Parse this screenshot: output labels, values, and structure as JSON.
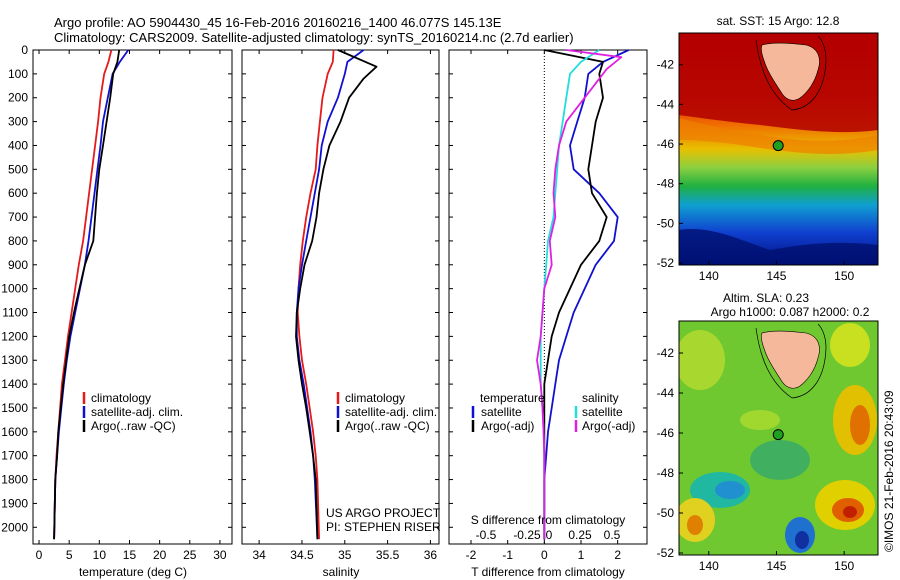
{
  "header": {
    "line1": "Argo profile: AO 5904430_45 16-Feb-2016 20160216_1400 46.077S 145.13E",
    "line2": "Climatology: CARS2009. Satellite-adjusted climatology: synTS_20160214.nc (2.7d earlier)"
  },
  "credit": {
    "project": "US ARGO PROJECT",
    "pi": "PI: STEPHEN RISER",
    "imos": "©IMOS 21-Feb-2016 20:43:09"
  },
  "colors": {
    "climatology": "#e41a1c",
    "satellite": "#1010d0",
    "argo": "#000000",
    "sat_salinity": "#22dddd",
    "argo_salinity": "#e020e0",
    "land": "#f5b89a"
  },
  "chart_data": [
    {
      "type": "line",
      "panel": "temperature",
      "xlabel": "temperature (deg C)",
      "xlim": [
        -1,
        32
      ],
      "ylim": [
        2070,
        0
      ],
      "xticks": [
        0,
        5,
        10,
        15,
        20,
        25,
        30
      ],
      "yticks": [
        0,
        100,
        200,
        300,
        400,
        500,
        600,
        700,
        800,
        900,
        1000,
        1100,
        1200,
        1300,
        1400,
        1500,
        1600,
        1700,
        1800,
        1900,
        2000
      ],
      "legend": [
        "climatology",
        "satellite-adj. clim.",
        "Argo(..raw -QC)"
      ],
      "series": [
        {
          "name": "climatology",
          "color": "#e41a1c",
          "x": [
            12.0,
            11.5,
            10.8,
            10.2,
            9.8,
            9.3,
            8.8,
            8.3,
            7.8,
            7.3,
            6.6,
            6.0,
            5.4,
            4.8,
            4.3,
            3.8,
            3.5,
            3.2,
            2.9,
            2.7,
            2.5
          ],
          "y": [
            0,
            50,
            100,
            200,
            300,
            400,
            500,
            600,
            700,
            800,
            900,
            1000,
            1100,
            1200,
            1300,
            1400,
            1500,
            1600,
            1700,
            1800,
            2050
          ]
        },
        {
          "name": "satellite-adj. clim.",
          "color": "#1010d0",
          "x": [
            14.8,
            13.4,
            12.2,
            11.4,
            10.6,
            10.2,
            9.7,
            9.2,
            8.7,
            8.2,
            7.6,
            6.8,
            6.0,
            5.2,
            4.6,
            4.1,
            3.7,
            3.3,
            3.0,
            2.7,
            2.5
          ],
          "y": [
            0,
            50,
            100,
            200,
            300,
            400,
            500,
            600,
            700,
            800,
            900,
            1000,
            1100,
            1200,
            1300,
            1400,
            1500,
            1600,
            1700,
            1800,
            2050
          ]
        },
        {
          "name": "Argo(..raw -QC)",
          "color": "#000000",
          "x": [
            13.3,
            13.0,
            12.3,
            11.8,
            11.2,
            10.6,
            10.0,
            9.6,
            9.3,
            9.0,
            7.6,
            6.7,
            5.8,
            5.0,
            4.5,
            4.0,
            3.6,
            3.2,
            3.0,
            2.7,
            2.5
          ],
          "y": [
            0,
            50,
            100,
            200,
            300,
            400,
            500,
            600,
            700,
            800,
            900,
            1000,
            1100,
            1200,
            1300,
            1400,
            1500,
            1600,
            1700,
            1800,
            2050
          ]
        }
      ]
    },
    {
      "type": "line",
      "panel": "salinity",
      "xlabel": "salinity",
      "xlim": [
        33.8,
        36.1
      ],
      "ylim": [
        2070,
        0
      ],
      "xticks": [
        34,
        34.5,
        35,
        35.5,
        36
      ],
      "legend": [
        "climatology",
        "satellite-adj. clim.",
        "Argo(..raw -QC)"
      ],
      "series": [
        {
          "name": "climatology",
          "color": "#e41a1c",
          "x": [
            34.87,
            34.86,
            34.8,
            34.74,
            34.71,
            34.68,
            34.66,
            34.6,
            34.55,
            34.51,
            34.48,
            34.46,
            34.45,
            34.47,
            34.5,
            34.55,
            34.59,
            34.63,
            34.66,
            34.68,
            34.7
          ],
          "y": [
            0,
            50,
            100,
            200,
            300,
            400,
            500,
            600,
            700,
            800,
            900,
            1000,
            1100,
            1200,
            1300,
            1400,
            1500,
            1600,
            1700,
            1800,
            2050
          ]
        },
        {
          "name": "satellite-adj. clim.",
          "color": "#1010d0",
          "x": [
            35.22,
            35.03,
            35.0,
            34.92,
            34.8,
            34.73,
            34.7,
            34.65,
            34.6,
            34.55,
            34.5,
            34.46,
            34.44,
            34.44,
            34.47,
            34.52,
            34.56,
            34.6,
            34.63,
            34.65,
            34.68
          ],
          "y": [
            0,
            50,
            100,
            200,
            300,
            400,
            500,
            600,
            700,
            800,
            900,
            1000,
            1100,
            1200,
            1300,
            1400,
            1500,
            1600,
            1700,
            1800,
            2050
          ]
        },
        {
          "name": "Argo(..raw -QC)",
          "color": "#000000",
          "x": [
            34.92,
            35.37,
            35.22,
            35.05,
            34.95,
            34.82,
            34.75,
            34.7,
            34.67,
            34.62,
            34.53,
            34.48,
            34.44,
            34.43,
            34.46,
            34.5,
            34.55,
            34.59,
            34.63,
            34.66,
            34.68
          ],
          "y": [
            0,
            70,
            120,
            200,
            300,
            400,
            500,
            600,
            700,
            800,
            900,
            1000,
            1100,
            1200,
            1300,
            1400,
            1500,
            1600,
            1700,
            1800,
            2050
          ]
        }
      ]
    },
    {
      "type": "line",
      "panel": "difference",
      "xlabel": "T difference from climatology",
      "xlabel_top": "S difference from climatology",
      "xlim": [
        -2.6,
        2.8
      ],
      "ylim": [
        2070,
        0
      ],
      "xticks": [
        -2,
        -1,
        0,
        1,
        2
      ],
      "xticks_salinity": [
        -0.5,
        -0.25,
        0,
        0.25,
        0.5
      ],
      "legend_temperature_title": "temperature",
      "legend_salinity_title": "salinity",
      "legend": [
        "satellite",
        "Argo(-adj)",
        "satellite",
        "Argo(-adj)"
      ],
      "series": [
        {
          "name": "satellite",
          "group": "temperature",
          "color": "#1010d0",
          "x": [
            2.3,
            1.6,
            1.2,
            1.1,
            0.9,
            0.7,
            0.8,
            1.5,
            2.0,
            1.9,
            1.4,
            1.1,
            0.8,
            0.6,
            0.4,
            0.3,
            0.2,
            0.1,
            0.05,
            0.0,
            0.0
          ],
          "y": [
            0,
            50,
            100,
            200,
            300,
            400,
            500,
            600,
            700,
            800,
            900,
            1000,
            1100,
            1200,
            1300,
            1400,
            1500,
            1600,
            1700,
            1800,
            2050
          ]
        },
        {
          "name": "Argo(-adj)",
          "group": "temperature",
          "color": "#000000",
          "x": [
            0.0,
            1.6,
            1.5,
            1.6,
            1.4,
            1.3,
            1.2,
            1.3,
            1.7,
            1.5,
            1.0,
            0.7,
            0.4,
            0.2,
            0.1,
            0.0,
            0.0,
            0.0,
            0.0,
            0.0,
            0.0
          ],
          "y": [
            0,
            50,
            100,
            200,
            300,
            400,
            500,
            600,
            700,
            800,
            900,
            1000,
            1100,
            1200,
            1300,
            1400,
            1500,
            1600,
            1700,
            1800,
            2050
          ]
        },
        {
          "name": "satellite",
          "group": "salinity",
          "color": "#22dddd",
          "x": [
            1.5,
            1.0,
            0.7,
            0.6,
            0.5,
            0.4,
            0.35,
            0.3,
            0.25,
            0.1,
            0.05,
            0.0,
            -0.05,
            -0.1,
            -0.1,
            -0.1,
            -0.05,
            -0.02,
            0.0,
            0.0,
            0.0
          ],
          "y": [
            0,
            50,
            100,
            200,
            300,
            400,
            500,
            600,
            700,
            800,
            900,
            1000,
            1100,
            1200,
            1300,
            1400,
            1500,
            1600,
            1700,
            1800,
            2050
          ]
        },
        {
          "name": "Argo(-adj)",
          "group": "salinity",
          "color": "#e020e0",
          "x": [
            0.6,
            2.1,
            1.7,
            1.1,
            0.6,
            0.4,
            0.3,
            0.25,
            0.3,
            0.15,
            0.2,
            0.0,
            -0.05,
            -0.1,
            -0.2,
            -0.1,
            -0.05,
            -0.02,
            0.0,
            0.0,
            0.0
          ],
          "y": [
            0,
            30,
            80,
            200,
            300,
            400,
            500,
            600,
            700,
            800,
            900,
            1000,
            1100,
            1200,
            1300,
            1400,
            1500,
            1600,
            1700,
            1800,
            2050
          ]
        }
      ]
    },
    {
      "type": "heatmap",
      "panel": "sst-map",
      "title": "sat. SST: 15 Argo: 12.8",
      "xticks": [
        140,
        145,
        150
      ],
      "yticks": [
        -42,
        -44,
        -46,
        -48,
        -50,
        -52
      ],
      "xlim": [
        137.8,
        152.5
      ],
      "ylim": [
        -52.1,
        -40.4
      ],
      "marker": {
        "lon": 145.13,
        "lat": -46.08
      }
    },
    {
      "type": "heatmap",
      "panel": "sla-map",
      "title_line1": "Altim. SLA: 0.23",
      "title_line2": "Argo h1000: 0.087 h2000: 0.2",
      "xticks": [
        140,
        145,
        150
      ],
      "yticks": [
        -42,
        -44,
        -46,
        -48,
        -50,
        -52
      ],
      "xlim": [
        137.8,
        152.5
      ],
      "ylim": [
        -52.1,
        -40.4
      ],
      "marker": {
        "lon": 145.13,
        "lat": -46.08
      }
    }
  ]
}
